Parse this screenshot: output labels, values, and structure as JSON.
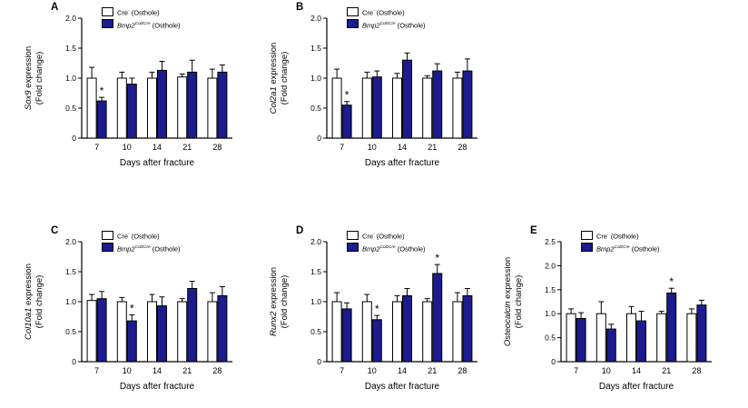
{
  "figure": {
    "background": "#ffffff",
    "colors": {
      "control_fill": "#ffffff",
      "mutant_fill": "#1c1c8e",
      "stroke": "#000000"
    },
    "legend_entries": [
      {
        "base": "Cre",
        "sup": "-",
        "suffix": " (Osthole)",
        "italic": false
      },
      {
        "base": "Bmp2",
        "sup": "Col2Cre",
        "suffix": " (Osthole)",
        "italic": true
      }
    ]
  },
  "chart_data": [
    {
      "type": "bar",
      "panel_label": "A",
      "gene": "Sox9",
      "ylabel": "Sox9 expression (Fold change)",
      "ylabel_suffix": " expression",
      "ylabel_line2": "(Fold change)",
      "xlabel": "Days after fracture",
      "categories": [
        "7",
        "10",
        "14",
        "21",
        "28"
      ],
      "ylim": [
        0,
        2.0
      ],
      "yticks": [
        "0",
        "0.5",
        "1.0",
        "1.5",
        "2.0"
      ],
      "legend_position": "top",
      "series": [
        {
          "name": "Cre- (Osthole)",
          "values": [
            1.0,
            1.0,
            1.0,
            1.02,
            1.0
          ],
          "errors": [
            0.18,
            0.1,
            0.1,
            0.05,
            0.15
          ],
          "sig_indices": []
        },
        {
          "name": "Bmp2Col2Cre (Osthole)",
          "values": [
            0.62,
            0.9,
            1.13,
            1.1,
            1.1
          ],
          "errors": [
            0.06,
            0.1,
            0.15,
            0.2,
            0.12
          ],
          "sig_indices": [
            0
          ]
        }
      ]
    },
    {
      "type": "bar",
      "panel_label": "B",
      "gene": "Col2a1",
      "ylabel": "Col2a1 expression (Fold change)",
      "ylabel_suffix": " expression",
      "ylabel_line2": "(Fold change)",
      "xlabel": "Days after fracture",
      "categories": [
        "7",
        "10",
        "14",
        "21",
        "28"
      ],
      "ylim": [
        0,
        2.0
      ],
      "yticks": [
        "0",
        "0.5",
        "1.0",
        "1.5",
        "2.0"
      ],
      "legend_position": "top",
      "series": [
        {
          "name": "Cre- (Osthole)",
          "values": [
            1.0,
            1.0,
            1.0,
            1.0,
            1.0
          ],
          "errors": [
            0.15,
            0.1,
            0.08,
            0.04,
            0.1
          ],
          "sig_indices": []
        },
        {
          "name": "Bmp2Col2Cre (Osthole)",
          "values": [
            0.55,
            1.02,
            1.3,
            1.12,
            1.12
          ],
          "errors": [
            0.06,
            0.1,
            0.12,
            0.12,
            0.2
          ],
          "sig_indices": [
            0
          ]
        }
      ]
    },
    {
      "type": "bar",
      "panel_label": "C",
      "gene": "Col10a1",
      "ylabel": "Col10a1 expression (Fold change)",
      "ylabel_suffix": " expression",
      "ylabel_line2": "(Fold change)",
      "xlabel": "Days after fracture",
      "categories": [
        "7",
        "10",
        "14",
        "21",
        "28"
      ],
      "ylim": [
        0,
        2.0
      ],
      "yticks": [
        "0",
        "0.5",
        "1.0",
        "1.5",
        "2.0"
      ],
      "legend_position": "top",
      "series": [
        {
          "name": "Cre- (Osthole)",
          "values": [
            1.02,
            1.0,
            1.0,
            1.0,
            1.0
          ],
          "errors": [
            0.1,
            0.07,
            0.12,
            0.05,
            0.15
          ],
          "sig_indices": []
        },
        {
          "name": "Bmp2Col2Cre (Osthole)",
          "values": [
            1.05,
            0.68,
            0.93,
            1.22,
            1.1
          ],
          "errors": [
            0.12,
            0.1,
            0.15,
            0.12,
            0.15
          ],
          "sig_indices": [
            1
          ]
        }
      ]
    },
    {
      "type": "bar",
      "panel_label": "D",
      "gene": "Runx2",
      "ylabel": "Runx2 expression (Fold change)",
      "ylabel_suffix": " expression",
      "ylabel_line2": "(Fold change)",
      "xlabel": "Days after fracture",
      "categories": [
        "7",
        "10",
        "14",
        "21",
        "28"
      ],
      "ylim": [
        0,
        2.0
      ],
      "yticks": [
        "0",
        "0.5",
        "1.0",
        "1.5",
        "2.0"
      ],
      "legend_position": "top",
      "series": [
        {
          "name": "Cre- (Osthole)",
          "values": [
            1.0,
            1.0,
            1.0,
            1.0,
            1.0
          ],
          "errors": [
            0.15,
            0.12,
            0.1,
            0.05,
            0.15
          ],
          "sig_indices": []
        },
        {
          "name": "Bmp2Col2Cre (Osthole)",
          "values": [
            0.88,
            0.7,
            1.1,
            1.47,
            1.1
          ],
          "errors": [
            0.1,
            0.07,
            0.12,
            0.15,
            0.12
          ],
          "sig_indices": [
            1,
            3
          ]
        }
      ]
    },
    {
      "type": "bar",
      "panel_label": "E",
      "gene": "Osteocalcin",
      "ylabel": "Osteocalcin expression (Fold change)",
      "ylabel_suffix": " expression",
      "ylabel_line2": "(Fold change)",
      "xlabel": "Days after fracture",
      "categories": [
        "7",
        "10",
        "14",
        "21",
        "28"
      ],
      "ylim": [
        0,
        2.5
      ],
      "yticks": [
        "0",
        "0.5",
        "1.0",
        "1.5",
        "2.0",
        "2.5"
      ],
      "legend_position": "top",
      "series": [
        {
          "name": "Cre- (Osthole)",
          "values": [
            1.0,
            1.0,
            1.0,
            1.0,
            1.0
          ],
          "errors": [
            0.1,
            0.25,
            0.15,
            0.05,
            0.1
          ],
          "sig_indices": []
        },
        {
          "name": "Bmp2Col2Cre (Osthole)",
          "values": [
            0.9,
            0.68,
            0.85,
            1.43,
            1.18
          ],
          "errors": [
            0.12,
            0.1,
            0.2,
            0.1,
            0.1
          ],
          "sig_indices": [
            3
          ]
        }
      ]
    }
  ]
}
